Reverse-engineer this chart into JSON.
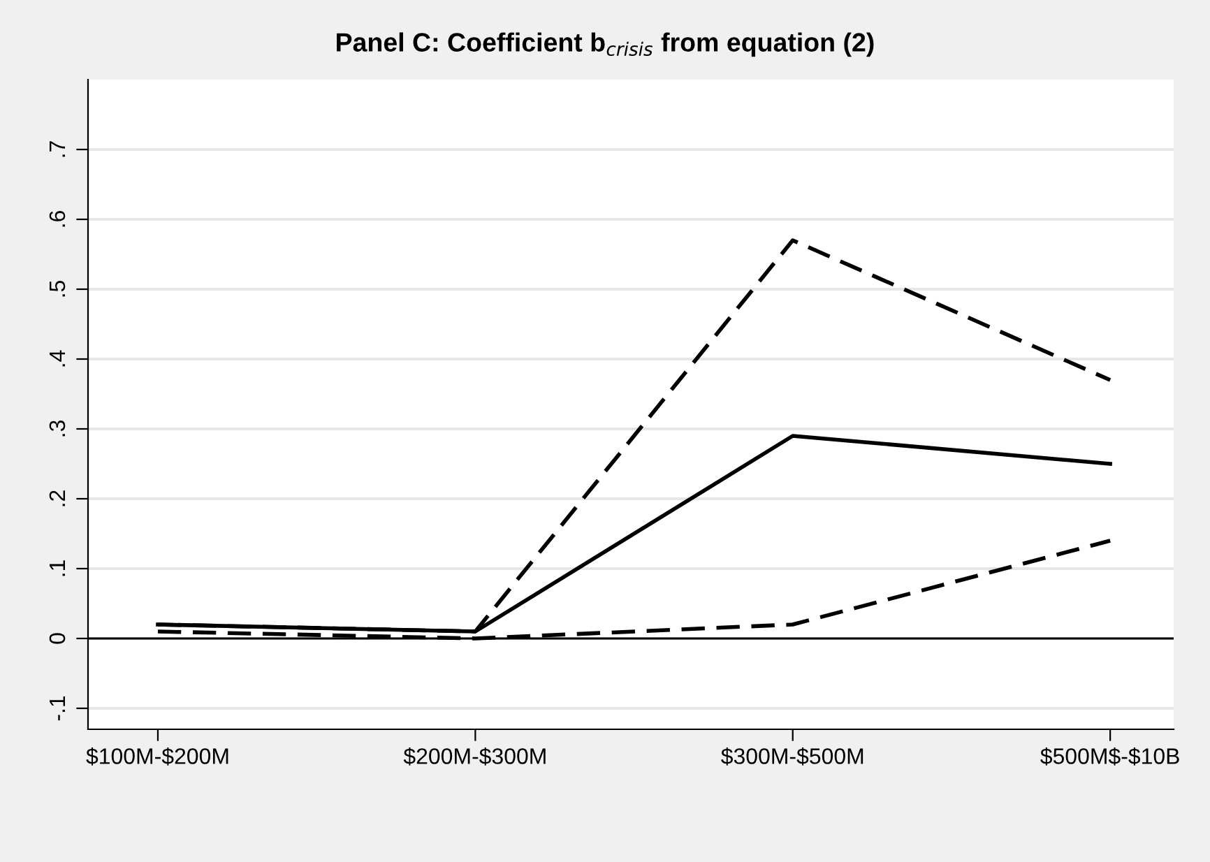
{
  "chart_data": {
    "type": "line",
    "title": "Panel C: Coefficient b$_{crisis}$ from equation (2)",
    "categories": [
      "$100M-$200M",
      "$200M-$300M",
      "$300M-$500M",
      "$500M$-$10B"
    ],
    "series": [
      {
        "color": "#000000",
        "values": [
          0.02,
          0.01,
          0.29,
          0.25
        ],
        "line_style": "solid"
      },
      {
        "color": "#000000",
        "values": [
          0.02,
          0.01,
          0.57,
          0.37
        ],
        "line_style": "dashed"
      },
      {
        "color": "#000000",
        "values": [
          0.01,
          0.0,
          0.02,
          0.14
        ],
        "line_style": "dashed"
      }
    ],
    "ylim": [
      -0.13,
      0.8
    ],
    "yticks": [
      {
        "value": -0.1,
        "label": "-.1"
      },
      0,
      {
        "value": 0.1,
        "label": ".1"
      },
      {
        "value": 0.2,
        "label": ".2"
      },
      {
        "value": 0.3,
        "label": ".3"
      },
      {
        "value": 0.4,
        "label": ".4"
      },
      {
        "value": 0.5,
        "label": ".5"
      },
      {
        "value": 0.6,
        "label": ".6"
      },
      {
        "value": 0.7,
        "label": ".7"
      }
    ],
    "ref_lines": [
      {
        "axis": "y",
        "value": 0,
        "color": "#000000"
      }
    ],
    "grid": "y",
    "legend": false,
    "marker": "none"
  }
}
